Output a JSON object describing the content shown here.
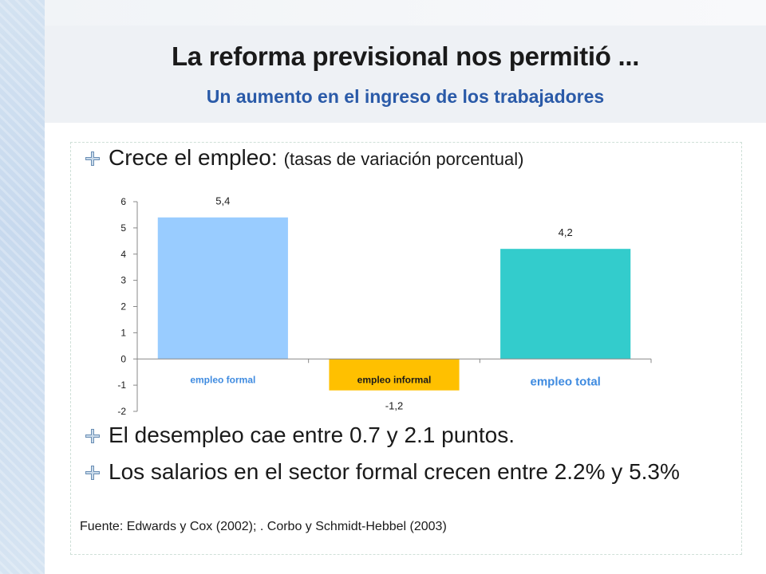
{
  "header": {
    "title": "La reforma previsional nos permitió ...",
    "subtitle": "Un aumento en el ingreso de los trabajadores"
  },
  "bullets": {
    "b1_main": "Crece el empleo:",
    "b1_note": "(tasas de variación porcentual)",
    "b2": "El desempleo cae entre 0.7 y 2.1 puntos.",
    "b3": "Los salarios en el sector formal crecen entre 2.2% y 5.3%"
  },
  "source": "Fuente: Edwards y Cox (2002); . Corbo y Schmidt-Hebbel (2003)",
  "colors": {
    "title": "#1a1a1a",
    "subtitle": "#2a5aa8",
    "bullet_icon": "#6b8fb5"
  },
  "chart_data": {
    "type": "bar",
    "categories": [
      "empleo formal",
      "empleo informal",
      "empleo total"
    ],
    "values": [
      5.4,
      -1.2,
      4.2
    ],
    "value_labels": [
      "5,4",
      "-1,2",
      "4,2"
    ],
    "bar_colors": [
      "#99ccff",
      "#ffc000",
      "#33cccc"
    ],
    "category_label_colors": [
      "#3f8be0",
      "#1a1a1a",
      "#3f8be0"
    ],
    "ylim": [
      -2,
      6
    ],
    "yticks": [
      6,
      5,
      4,
      3,
      2,
      1,
      0,
      -1,
      -2
    ],
    "ytick_labels": [
      "6",
      "5",
      "4",
      "3",
      "2",
      "1",
      "0",
      "-1",
      "-2"
    ],
    "grid": false,
    "title": "",
    "xlabel": "",
    "ylabel": ""
  }
}
